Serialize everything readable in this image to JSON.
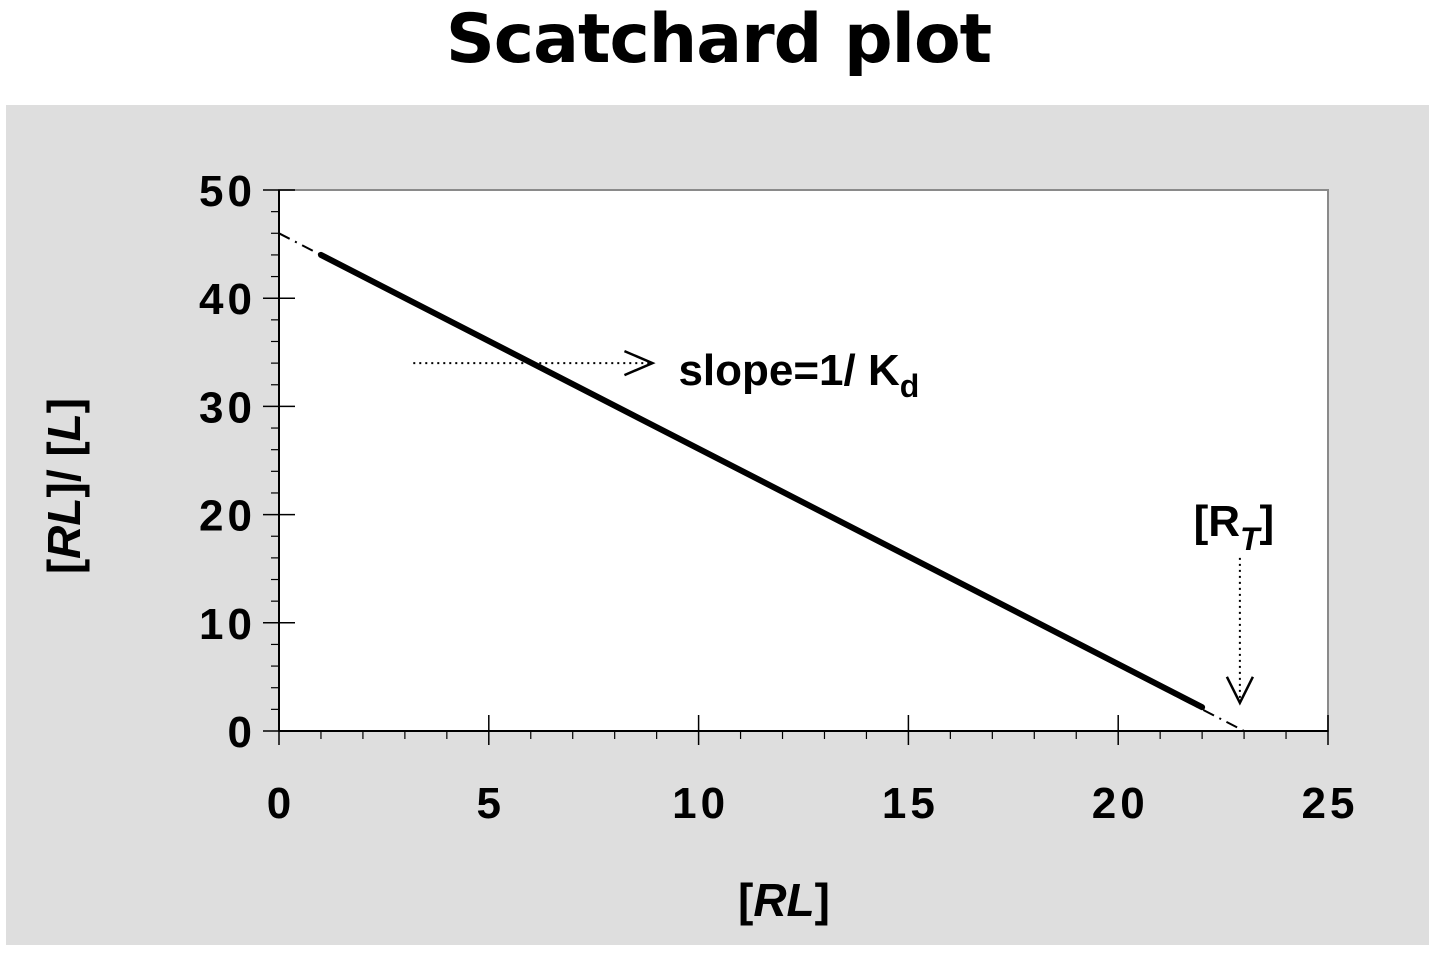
{
  "title": "Scatchard plot",
  "chart_data": {
    "type": "line",
    "title": "Scatchard plot",
    "xlabel": "[RL]",
    "ylabel": "[RL]/ [L]",
    "xlim": [
      0,
      25
    ],
    "ylim": [
      0,
      50
    ],
    "x_ticks": [
      0,
      5,
      10,
      15,
      20,
      25
    ],
    "x_tick_labels": [
      "0",
      "5",
      "10",
      "15",
      "20",
      "25"
    ],
    "y_ticks": [
      0,
      10,
      20,
      30,
      40,
      50
    ],
    "y_tick_labels": [
      "0",
      "10",
      "20",
      "30",
      "40",
      "50"
    ],
    "grid": false,
    "series": [
      {
        "style": "solid",
        "x": [
          1,
          22
        ],
        "y": [
          44,
          2.2
        ]
      },
      {
        "style": "dashed",
        "x": [
          0,
          23
        ],
        "y": [
          46,
          0
        ]
      }
    ],
    "annotations": [
      {
        "text": "slope=1/ K",
        "subscript": "d",
        "arrow": "right",
        "arrow_start": [
          3.2,
          34
        ],
        "arrow_end": [
          8.9,
          34
        ]
      },
      {
        "text": "[R",
        "subscript": "T",
        "suffix": "]",
        "arrow": "down",
        "arrow_start": [
          22.9,
          16
        ],
        "arrow_end": [
          22.9,
          2.6
        ]
      }
    ],
    "colors": {
      "panel_background": "#dedede",
      "plot_background": "#ffffff",
      "line": "#000000"
    }
  }
}
